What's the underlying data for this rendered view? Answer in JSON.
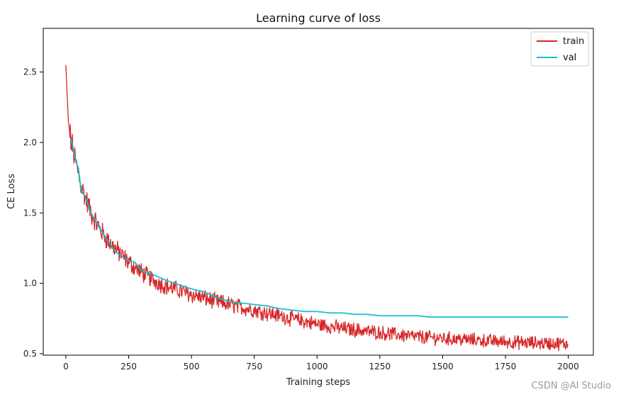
{
  "watermark": "CSDN @AI Studio",
  "colors": {
    "train": "#d62728",
    "val": "#17becf"
  },
  "chart_data": {
    "type": "line",
    "title": "Learning curve of loss",
    "xlabel": "Training steps",
    "ylabel": "CE Loss",
    "xlim": [
      -90,
      2100
    ],
    "ylim": [
      0.49,
      2.81
    ],
    "xticks": [
      0,
      250,
      500,
      750,
      1000,
      1250,
      1500,
      1750,
      2000
    ],
    "yticks": [
      0.5,
      1.0,
      1.5,
      2.0,
      2.5
    ],
    "ytick_labels": [
      "0.5",
      "1.0",
      "1.5",
      "2.0",
      "2.5"
    ],
    "grid": false,
    "legend": {
      "position": "top-right",
      "entries": [
        "train",
        "val"
      ]
    },
    "series": [
      {
        "name": "train",
        "color": "#d62728",
        "noisy": true,
        "x": [
          0,
          10,
          20,
          40,
          60,
          80,
          100,
          130,
          160,
          200,
          250,
          300,
          350,
          400,
          500,
          600,
          700,
          800,
          900,
          1000,
          1100,
          1200,
          1300,
          1400,
          1500,
          1600,
          1700,
          1800,
          1900,
          2000
        ],
        "y": [
          2.55,
          2.15,
          2.02,
          1.85,
          1.7,
          1.6,
          1.5,
          1.4,
          1.32,
          1.24,
          1.15,
          1.08,
          1.02,
          0.98,
          0.92,
          0.87,
          0.83,
          0.79,
          0.75,
          0.71,
          0.68,
          0.66,
          0.64,
          0.62,
          0.61,
          0.6,
          0.59,
          0.58,
          0.575,
          0.57
        ]
      },
      {
        "name": "val",
        "color": "#17becf",
        "x": [
          20,
          30,
          40,
          50,
          60,
          80,
          100,
          125,
          150,
          175,
          200,
          225,
          250,
          275,
          300,
          350,
          400,
          450,
          500,
          550,
          600,
          650,
          700,
          750,
          800,
          850,
          900,
          950,
          1000,
          1050,
          1100,
          1150,
          1200,
          1250,
          1300,
          1350,
          1400,
          1450,
          1500,
          1550,
          1600,
          1650,
          1700,
          1750,
          1800,
          1850,
          1900,
          1950,
          2000
        ],
        "y": [
          2.03,
          1.95,
          1.86,
          1.82,
          1.67,
          1.6,
          1.5,
          1.42,
          1.35,
          1.28,
          1.22,
          1.19,
          1.16,
          1.15,
          1.09,
          1.06,
          1.02,
          0.99,
          0.96,
          0.94,
          0.9,
          0.87,
          0.86,
          0.85,
          0.84,
          0.82,
          0.81,
          0.8,
          0.8,
          0.79,
          0.79,
          0.78,
          0.78,
          0.77,
          0.77,
          0.77,
          0.77,
          0.76,
          0.76,
          0.76,
          0.76,
          0.76,
          0.76,
          0.76,
          0.76,
          0.76,
          0.76,
          0.76,
          0.76
        ]
      }
    ]
  }
}
